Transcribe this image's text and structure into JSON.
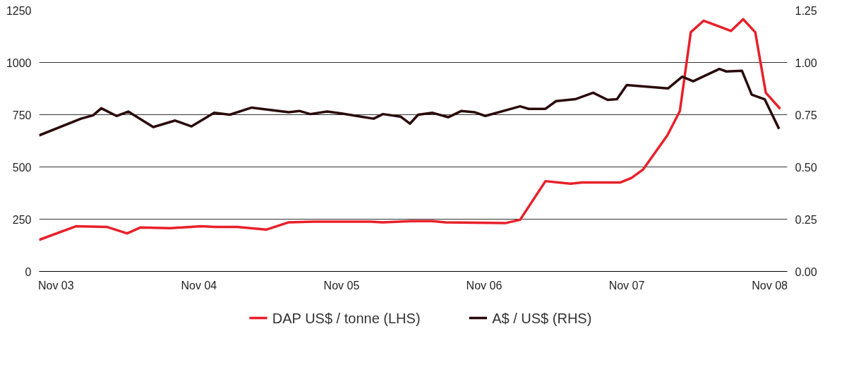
{
  "chart_data": {
    "type": "line",
    "xlim": [
      "2003-09-19",
      "2008-12-16"
    ],
    "xticks": [
      {
        "value": "2003-11-01",
        "label": "Nov 03"
      },
      {
        "value": "2004-11-01",
        "label": "Nov 04"
      },
      {
        "value": "2005-11-01",
        "label": "Nov 05"
      },
      {
        "value": "2006-11-01",
        "label": "Nov 06"
      },
      {
        "value": "2007-11-01",
        "label": "Nov 07"
      },
      {
        "value": "2008-11-01",
        "label": "Nov 08"
      }
    ],
    "ylim": [
      0,
      1250
    ],
    "yticks": [
      0,
      250,
      500,
      750,
      1000,
      1250
    ],
    "y2lim": [
      0,
      1.25
    ],
    "y2ticks": [
      {
        "value": 0,
        "label": "0.00"
      },
      {
        "value": 0.25,
        "label": "0.25"
      },
      {
        "value": 0.5,
        "label": "0.50"
      },
      {
        "value": 0.75,
        "label": "0.75"
      },
      {
        "value": 1.0,
        "label": "1.00"
      },
      {
        "value": 1.25,
        "label": "1.25"
      }
    ],
    "grid": "y",
    "legend": "bottom",
    "line_style": "solid",
    "series": [
      {
        "name": "DAP US$ / tonne (LHS)",
        "color": "#e8202a",
        "x": [
          "2003-09-19",
          "2003-12-22",
          "2004-03-10",
          "2004-05-01",
          "2004-06-04",
          "2004-08-19",
          "2004-11-07",
          "2004-12-13",
          "2005-02-07",
          "2005-04-22",
          "2005-06-19",
          "2005-08-22",
          "2006-01-13",
          "2006-02-15",
          "2006-04-28",
          "2006-06-22",
          "2006-07-25",
          "2006-12-25",
          "2007-02-01",
          "2007-04-07",
          "2007-06-10",
          "2007-07-10",
          "2007-08-16",
          "2007-10-16",
          "2007-11-13",
          "2007-12-13",
          "2008-02-13",
          "2008-03-16",
          "2008-04-13",
          "2008-05-16",
          "2008-07-25",
          "2008-08-25",
          "2008-09-25",
          "2008-10-22",
          "2008-11-28"
        ],
        "values": [
          151,
          216,
          213,
          182,
          210,
          207,
          216,
          213,
          213,
          200,
          235,
          238,
          238,
          235,
          241,
          241,
          235,
          231,
          247,
          432,
          420,
          426,
          426,
          426,
          447,
          488,
          651,
          768,
          1145,
          1200,
          1151,
          1207,
          1145,
          855,
          778
        ]
      },
      {
        "name": "A$ / US$ (RHS)",
        "color": "#2a0a0a",
        "axis": "y2",
        "x": [
          "2003-09-19",
          "2004-01-04",
          "2004-02-04",
          "2004-02-25",
          "2004-04-04",
          "2004-05-04",
          "2004-07-07",
          "2004-09-01",
          "2004-10-13",
          "2004-12-10",
          "2005-01-19",
          "2005-03-16",
          "2005-06-19",
          "2005-07-16",
          "2005-08-13",
          "2005-09-25",
          "2005-11-01",
          "2006-01-22",
          "2006-02-15",
          "2006-04-01",
          "2006-04-25",
          "2006-05-16",
          "2006-06-22",
          "2006-08-01",
          "2006-09-04",
          "2006-10-07",
          "2006-11-04",
          "2007-02-01",
          "2007-02-23",
          "2007-04-07",
          "2007-05-04",
          "2007-06-22",
          "2007-08-07",
          "2007-09-13",
          "2007-10-07",
          "2007-11-01",
          "2008-02-15",
          "2008-03-22",
          "2008-04-19",
          "2008-06-25",
          "2008-07-13",
          "2008-08-22",
          "2008-09-16",
          "2008-10-19",
          "2008-11-25"
        ],
        "values": [
          0.651,
          0.731,
          0.747,
          0.781,
          0.744,
          0.765,
          0.691,
          0.722,
          0.694,
          0.759,
          0.75,
          0.784,
          0.762,
          0.768,
          0.753,
          0.765,
          0.756,
          0.731,
          0.753,
          0.741,
          0.707,
          0.75,
          0.759,
          0.738,
          0.768,
          0.762,
          0.744,
          0.79,
          0.778,
          0.778,
          0.815,
          0.824,
          0.855,
          0.821,
          0.824,
          0.892,
          0.876,
          0.932,
          0.91,
          0.969,
          0.957,
          0.96,
          0.846,
          0.824,
          0.682
        ]
      }
    ]
  }
}
